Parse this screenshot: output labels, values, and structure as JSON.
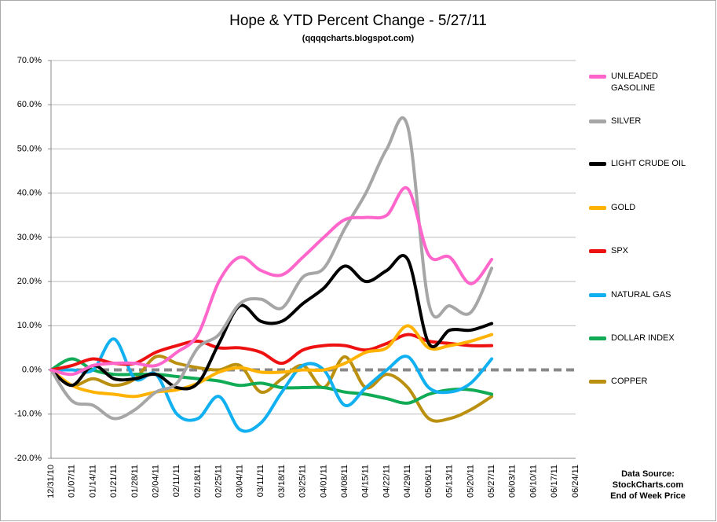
{
  "chart_data": {
    "type": "line",
    "title": "Hope & YTD Percent Change - 5/27/11",
    "subtitle": "(qqqqcharts.blogspot.com)",
    "source": [
      "Data Source:",
      "StockCharts.com",
      "End of Week Price"
    ],
    "categories": [
      "12/31/10",
      "01/07/11",
      "01/14/11",
      "01/21/11",
      "01/28/11",
      "02/04/11",
      "02/11/11",
      "02/18/11",
      "02/25/11",
      "03/04/11",
      "03/11/11",
      "03/18/11",
      "03/25/11",
      "04/01/11",
      "04/08/11",
      "04/15/11",
      "04/22/11",
      "04/29/11",
      "05/06/11",
      "05/13/11",
      "05/20/11",
      "05/27/11",
      "06/03/11",
      "06/10/11",
      "06/17/11",
      "06/24/11"
    ],
    "ylim": [
      -20,
      70
    ],
    "yticks": [
      {
        "value": -20,
        "label": "-20.0%"
      },
      {
        "value": -10,
        "label": "-10.0%"
      },
      {
        "value": 0,
        "label": "0.0%"
      },
      {
        "value": 10,
        "label": "10.0%"
      },
      {
        "value": 20,
        "label": "20.0%"
      },
      {
        "value": 30,
        "label": "30.0%"
      },
      {
        "value": 40,
        "label": "40.0%"
      },
      {
        "value": 50,
        "label": "50.0%"
      },
      {
        "value": 60,
        "label": "60.0%"
      },
      {
        "value": 70,
        "label": "70.0%"
      }
    ],
    "grid": true,
    "series": [
      {
        "name": "UNLEADED GASOLINE",
        "color": "#ff66cc",
        "values": [
          0,
          -1,
          1,
          1.5,
          1.5,
          1,
          4,
          8,
          20,
          25.5,
          22.5,
          21.5,
          25.5,
          30,
          34,
          34.5,
          35,
          41,
          26,
          25.5,
          19.5,
          25,
          null,
          null,
          null,
          null
        ]
      },
      {
        "name": "SILVER",
        "color": "#a6a6a6",
        "values": [
          0,
          -7,
          -8,
          -11,
          -9,
          -5,
          -3,
          5,
          8,
          15,
          16,
          14,
          21,
          23,
          32,
          40,
          50,
          55,
          15,
          14.5,
          13,
          23,
          null,
          null,
          null,
          null
        ]
      },
      {
        "name": "LIGHT CRUDE OIL",
        "color": "#000000",
        "values": [
          0,
          -3.5,
          1,
          -2,
          -2,
          -1,
          -4,
          -3,
          6,
          14.5,
          11,
          11,
          15,
          18.5,
          23.5,
          20,
          22.5,
          25,
          6,
          9,
          9,
          10.5,
          null,
          null,
          null,
          null
        ]
      },
      {
        "name": "GOLD",
        "color": "#ffb300",
        "values": [
          0,
          -3.5,
          -5,
          -5.5,
          -6,
          -5,
          -4.5,
          -3,
          -0.5,
          0.5,
          -0.5,
          -0.5,
          0,
          0,
          1.5,
          4,
          5,
          10,
          5,
          5.5,
          6.5,
          8,
          null,
          null,
          null,
          null
        ]
      },
      {
        "name": "SPX",
        "color": "#ee1111",
        "values": [
          0,
          1,
          2.5,
          1.5,
          1.5,
          4,
          5.5,
          6.5,
          5,
          5,
          4,
          1.5,
          4.5,
          5.5,
          5.5,
          4.5,
          6,
          8,
          6.5,
          6,
          5.5,
          5.5,
          null,
          null,
          null,
          null
        ]
      },
      {
        "name": "NATURAL GAS",
        "color": "#11b0f0",
        "values": [
          0,
          0,
          0,
          7,
          -2,
          -1,
          -10,
          -11,
          -6,
          -13.5,
          -12,
          -5,
          1,
          0,
          -8,
          -4,
          0,
          3,
          -4,
          -5,
          -3,
          2.5,
          null,
          null,
          null,
          null
        ]
      },
      {
        "name": "DOLLAR INDEX",
        "color": "#11aa55",
        "values": [
          0,
          2.5,
          0,
          -1,
          -1,
          -1,
          -1.5,
          -2,
          -2.5,
          -3.5,
          -3,
          -4,
          -4,
          -4,
          -5,
          -5.5,
          -6.5,
          -7.5,
          -5.5,
          -4.5,
          -4.5,
          -5.5,
          null,
          null,
          null,
          null
        ]
      },
      {
        "name": "COPPER",
        "color": "#bb9010",
        "values": [
          0,
          -3.5,
          -2,
          -3.5,
          -2,
          3,
          1.5,
          0.5,
          0,
          1,
          -5,
          -2,
          1,
          -4,
          3,
          -4,
          -1,
          -4,
          -11,
          -11,
          -9,
          -6,
          null,
          null,
          null,
          null
        ]
      }
    ]
  }
}
